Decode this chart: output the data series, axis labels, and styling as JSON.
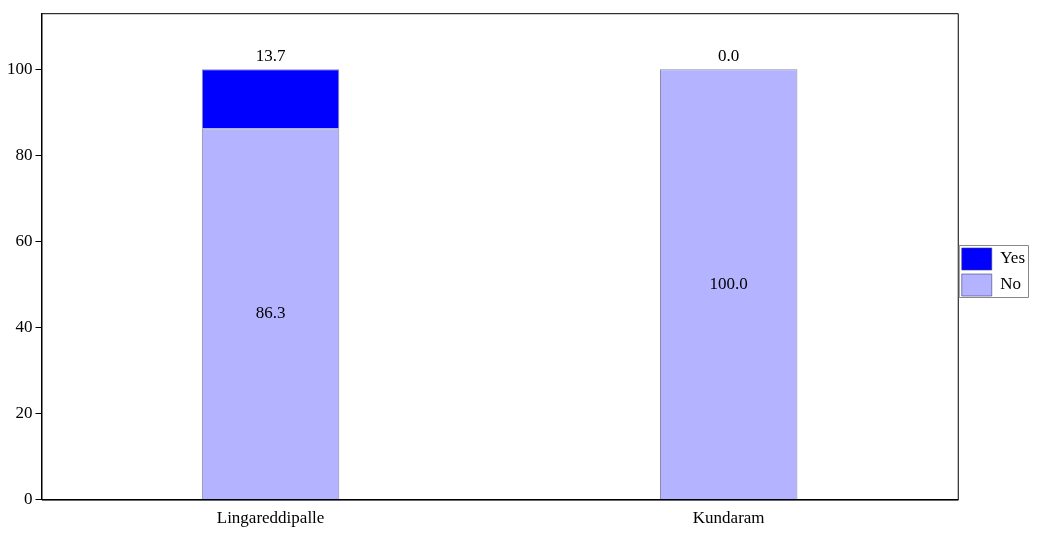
{
  "chart_data": {
    "type": "bar",
    "stacked": true,
    "categories": [
      "Lingareddipalle",
      "Kundaram"
    ],
    "series": [
      {
        "name": "No",
        "color": "#b3b3ff",
        "values": [
          86.3,
          100.0
        ],
        "value_labels": [
          "86.3",
          "100.0"
        ]
      },
      {
        "name": "Yes",
        "color": "#0000ff",
        "values": [
          13.7,
          0.0
        ],
        "value_labels": [
          "13.7",
          "0.0"
        ]
      }
    ],
    "ylim": [
      0,
      113
    ],
    "yticks": [
      0,
      20,
      40,
      60,
      80,
      100
    ],
    "grid": false,
    "legend": "right"
  }
}
